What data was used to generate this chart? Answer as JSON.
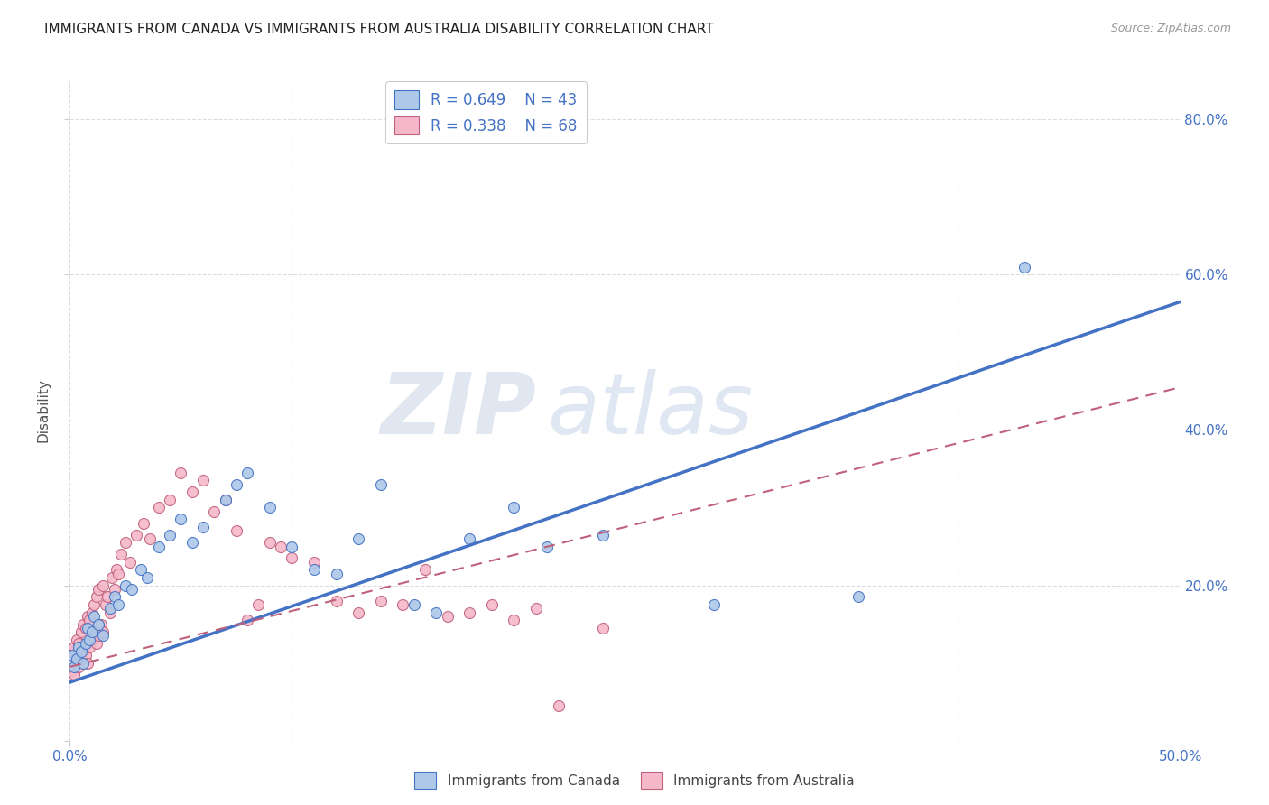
{
  "title": "IMMIGRANTS FROM CANADA VS IMMIGRANTS FROM AUSTRALIA DISABILITY CORRELATION CHART",
  "source": "Source: ZipAtlas.com",
  "ylabel": "Disability",
  "xlim": [
    0.0,
    0.5
  ],
  "ylim": [
    0.0,
    0.85
  ],
  "xticks": [
    0.0,
    0.1,
    0.2,
    0.3,
    0.4,
    0.5
  ],
  "yticks": [
    0.0,
    0.2,
    0.4,
    0.6,
    0.8
  ],
  "xticklabels": [
    "0.0%",
    "",
    "",
    "",
    "",
    "50.0%"
  ],
  "yticklabels": [
    "",
    "20.0%",
    "40.0%",
    "60.0%",
    "80.0%"
  ],
  "canada_R": "0.649",
  "canada_N": "43",
  "australia_R": "0.338",
  "australia_N": "68",
  "canada_color": "#adc8e8",
  "canada_line_color": "#4472c4",
  "australia_color": "#f5b8cb",
  "australia_line_color": "#c0607a",
  "canada_scatter_x": [
    0.001,
    0.002,
    0.003,
    0.004,
    0.005,
    0.006,
    0.007,
    0.008,
    0.009,
    0.01,
    0.011,
    0.013,
    0.015,
    0.018,
    0.02,
    0.022,
    0.025,
    0.028,
    0.032,
    0.035,
    0.04,
    0.045,
    0.05,
    0.055,
    0.06,
    0.07,
    0.075,
    0.08,
    0.09,
    0.1,
    0.11,
    0.12,
    0.13,
    0.14,
    0.155,
    0.165,
    0.18,
    0.2,
    0.215,
    0.24,
    0.29,
    0.355,
    0.43
  ],
  "canada_scatter_y": [
    0.11,
    0.095,
    0.105,
    0.12,
    0.115,
    0.1,
    0.125,
    0.145,
    0.13,
    0.14,
    0.16,
    0.15,
    0.135,
    0.17,
    0.185,
    0.175,
    0.2,
    0.195,
    0.22,
    0.21,
    0.25,
    0.265,
    0.285,
    0.255,
    0.275,
    0.31,
    0.33,
    0.345,
    0.3,
    0.25,
    0.22,
    0.215,
    0.26,
    0.33,
    0.175,
    0.165,
    0.26,
    0.3,
    0.25,
    0.265,
    0.175,
    0.185,
    0.61
  ],
  "australia_scatter_x": [
    0.001,
    0.001,
    0.002,
    0.002,
    0.003,
    0.003,
    0.004,
    0.004,
    0.005,
    0.005,
    0.006,
    0.006,
    0.007,
    0.007,
    0.008,
    0.008,
    0.009,
    0.009,
    0.01,
    0.01,
    0.011,
    0.011,
    0.012,
    0.012,
    0.013,
    0.013,
    0.014,
    0.015,
    0.015,
    0.016,
    0.017,
    0.018,
    0.019,
    0.02,
    0.021,
    0.022,
    0.023,
    0.025,
    0.027,
    0.03,
    0.033,
    0.036,
    0.04,
    0.045,
    0.05,
    0.055,
    0.06,
    0.065,
    0.07,
    0.075,
    0.08,
    0.085,
    0.09,
    0.095,
    0.1,
    0.11,
    0.12,
    0.13,
    0.14,
    0.15,
    0.16,
    0.17,
    0.18,
    0.19,
    0.2,
    0.21,
    0.22,
    0.24
  ],
  "australia_scatter_y": [
    0.09,
    0.115,
    0.085,
    0.12,
    0.1,
    0.13,
    0.095,
    0.125,
    0.105,
    0.14,
    0.115,
    0.15,
    0.11,
    0.145,
    0.1,
    0.16,
    0.12,
    0.155,
    0.13,
    0.165,
    0.14,
    0.175,
    0.125,
    0.185,
    0.135,
    0.195,
    0.15,
    0.14,
    0.2,
    0.175,
    0.185,
    0.165,
    0.21,
    0.195,
    0.22,
    0.215,
    0.24,
    0.255,
    0.23,
    0.265,
    0.28,
    0.26,
    0.3,
    0.31,
    0.345,
    0.32,
    0.335,
    0.295,
    0.31,
    0.27,
    0.155,
    0.175,
    0.255,
    0.25,
    0.235,
    0.23,
    0.18,
    0.165,
    0.18,
    0.175,
    0.22,
    0.16,
    0.165,
    0.175,
    0.155,
    0.17,
    0.045,
    0.145
  ],
  "canada_regline_x": [
    0.0,
    0.5
  ],
  "canada_regline_y": [
    0.075,
    0.565
  ],
  "australia_regline_x": [
    0.0,
    0.5
  ],
  "australia_regline_y": [
    0.095,
    0.455
  ],
  "watermark_zip": "ZIP",
  "watermark_atlas": "atlas",
  "background_color": "#ffffff",
  "grid_color": "#dddddd"
}
